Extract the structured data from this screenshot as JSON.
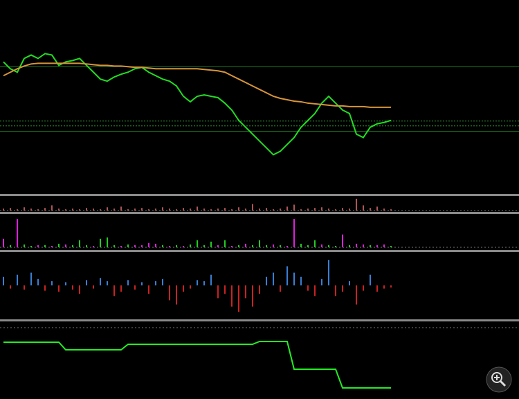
{
  "chart_data": [
    {
      "type": "line",
      "ylim": [
        0,
        280
      ],
      "series": [
        {
          "color": "#22dd22",
          "values": [
            190,
            180,
            175,
            195,
            200,
            195,
            202,
            200,
            185,
            190,
            192,
            195,
            185,
            175,
            165,
            162,
            168,
            172,
            175,
            180,
            182,
            175,
            170,
            165,
            162,
            155,
            140,
            132,
            140,
            142,
            140,
            138,
            130,
            120,
            105,
            95,
            85,
            75,
            65,
            55,
            60,
            70,
            80,
            95,
            105,
            115,
            130,
            140,
            130,
            120,
            115,
            85,
            80,
            95,
            100,
            102,
            105
          ]
        },
        {
          "color": "#d8953a",
          "values": [
            170,
            175,
            180,
            184,
            187,
            188,
            188,
            188,
            188,
            188,
            188,
            188,
            187,
            186,
            185,
            185,
            184,
            184,
            183,
            182,
            182,
            181,
            180,
            180,
            180,
            180,
            180,
            180,
            180,
            179,
            178,
            177,
            175,
            170,
            165,
            160,
            155,
            150,
            145,
            140,
            137,
            135,
            133,
            132,
            130,
            129,
            128,
            127,
            126,
            126,
            125,
            125,
            125,
            124,
            124,
            124,
            124
          ]
        }
      ],
      "levels": [
        {
          "value": 183,
          "style": "solid",
          "color": "#1f7a1f"
        },
        {
          "value": 104,
          "style": "dotted",
          "color": "#2e9e2e"
        },
        {
          "value": 97,
          "style": "dotted",
          "color": "#2e9e2e"
        },
        {
          "value": 89,
          "style": "solid",
          "color": "#1f7a1f"
        }
      ]
    },
    {
      "type": "bar",
      "ylim": [
        0,
        20
      ],
      "color": "#b05555",
      "values": [
        3,
        4,
        2,
        5,
        3,
        2,
        4,
        8,
        3,
        2,
        3,
        2,
        4,
        3,
        2,
        5,
        3,
        6,
        2,
        3,
        4,
        2,
        3,
        5,
        3,
        2,
        4,
        3,
        6,
        3,
        2,
        3,
        4,
        2,
        5,
        3,
        10,
        3,
        4,
        2,
        3,
        6,
        9,
        2,
        3,
        4,
        5,
        3,
        2,
        4,
        3,
        18,
        8,
        4,
        6,
        3,
        2
      ]
    },
    {
      "type": "bar",
      "ylim": [
        0,
        45
      ],
      "values": [
        12,
        3,
        40,
        4,
        2,
        3,
        3,
        2,
        5,
        4,
        3,
        10,
        3,
        2,
        12,
        14,
        3,
        2,
        4,
        3,
        3,
        6,
        5,
        3,
        2,
        3,
        2,
        4,
        10,
        3,
        8,
        3,
        10,
        2,
        3,
        5,
        3,
        10,
        3,
        4,
        3,
        2,
        40,
        5,
        3,
        10,
        4,
        3,
        2,
        18,
        3,
        5,
        4,
        3,
        3,
        4,
        2
      ],
      "colors": [
        "#dd22dd",
        "#22cc22",
        "#dd22dd",
        "#22cc22",
        "#22cc22",
        "#dd22dd",
        "#22cc22",
        "#dd22dd",
        "#22cc22",
        "#dd22dd",
        "#22cc22",
        "#22cc22",
        "#22cc22",
        "#dd22dd",
        "#22cc22",
        "#22cc22",
        "#22cc22",
        "#dd22dd",
        "#22cc22",
        "#dd22dd",
        "#dd22dd",
        "#dd22dd",
        "#dd22dd",
        "#22cc22",
        "#dd22dd",
        "#22cc22",
        "#dd22dd",
        "#22cc22",
        "#22cc22",
        "#22cc22",
        "#22cc22",
        "#dd22dd",
        "#22cc22",
        "#dd22dd",
        "#22cc22",
        "#dd22dd",
        "#22cc22",
        "#22cc22",
        "#22cc22",
        "#dd22dd",
        "#22cc22",
        "#dd22dd",
        "#dd22dd",
        "#22cc22",
        "#22cc22",
        "#22cc22",
        "#dd22dd",
        "#22cc22",
        "#22cc22",
        "#dd22dd",
        "#22cc22",
        "#dd22dd",
        "#dd22dd",
        "#22cc22",
        "#dd22dd",
        "#dd22dd",
        "#22cc22"
      ]
    },
    {
      "type": "signed-bar",
      "ylim": [
        -30,
        30
      ],
      "up_color": "#3a7fd5",
      "down_color": "#cc2222",
      "values": [
        8,
        -3,
        10,
        -4,
        12,
        6,
        -5,
        4,
        -6,
        3,
        -4,
        -8,
        5,
        -3,
        7,
        4,
        -10,
        -6,
        5,
        -4,
        3,
        -8,
        4,
        6,
        -14,
        -18,
        -6,
        -3,
        5,
        4,
        10,
        -12,
        -8,
        -20,
        -25,
        -12,
        -20,
        -8,
        8,
        12,
        -6,
        18,
        12,
        8,
        -5,
        -10,
        6,
        24,
        -10,
        -6,
        4,
        -18,
        -5,
        10,
        -6,
        -3,
        -2
      ]
    },
    {
      "type": "line",
      "ylim": [
        0,
        111
      ],
      "series": [
        {
          "color": "#22ee22",
          "values": [
            82,
            82,
            82,
            82,
            82,
            82,
            82,
            82,
            82,
            71,
            71,
            71,
            71,
            71,
            71,
            71,
            71,
            71,
            79,
            79,
            79,
            79,
            79,
            79,
            79,
            79,
            79,
            79,
            79,
            79,
            79,
            79,
            79,
            79,
            79,
            79,
            79,
            83,
            83,
            83,
            83,
            83,
            43,
            43,
            43,
            43,
            43,
            43,
            43,
            16,
            16,
            16,
            16,
            16,
            16,
            16,
            16
          ]
        }
      ]
    }
  ]
}
